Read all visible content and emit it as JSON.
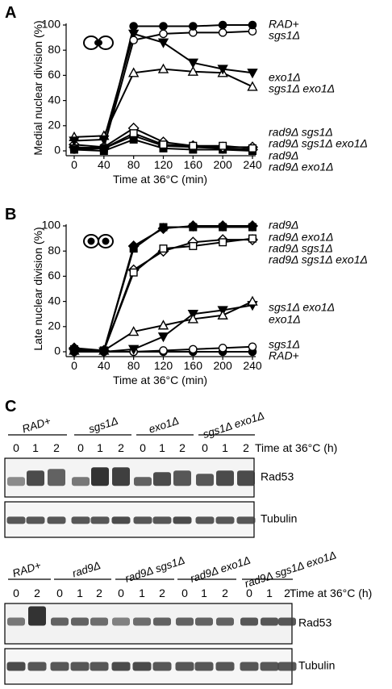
{
  "panels": {
    "a": {
      "letter": "A"
    },
    "b": {
      "letter": "B"
    },
    "c": {
      "letter": "C"
    }
  },
  "chart_data": [
    {
      "type": "line",
      "panel": "A",
      "xlabel": "Time at 36°C (min)",
      "ylabel": "Medial nuclear division (%)",
      "x": [
        0,
        40,
        80,
        120,
        160,
        200,
        240
      ],
      "xticks": [
        "0",
        "40",
        "80",
        "120",
        "160",
        "200",
        "240"
      ],
      "yticks": [
        "0",
        "20",
        "40",
        "60",
        "80",
        "100"
      ],
      "xlim": [
        0,
        240
      ],
      "ylim": [
        0,
        100
      ],
      "series": [
        {
          "name": "RAD+",
          "marker": "circle-filled",
          "values": [
            1,
            2,
            99,
            99,
            99,
            100,
            100
          ]
        },
        {
          "name": "sgs1Δ",
          "marker": "circle-open",
          "values": [
            2,
            3,
            88,
            93,
            94,
            94,
            95
          ]
        },
        {
          "name": "exo1Δ",
          "marker": "triangle-down-filled",
          "values": [
            8,
            9,
            93,
            86,
            70,
            65,
            62
          ]
        },
        {
          "name": "sgs1Δ exo1Δ",
          "marker": "triangle-up-open",
          "values": [
            11,
            12,
            62,
            65,
            63,
            62,
            51
          ]
        },
        {
          "name": "rad9Δ sgs1Δ",
          "marker": "square-open",
          "values": [
            2,
            2,
            14,
            5,
            4,
            4,
            2
          ]
        },
        {
          "name": "rad9Δ sgs1Δ exo1Δ",
          "marker": "diamond-open",
          "values": [
            5,
            3,
            18,
            7,
            4,
            3,
            3
          ]
        },
        {
          "name": "rad9Δ",
          "marker": "diamond-filled",
          "values": [
            3,
            2,
            12,
            4,
            3,
            2,
            1
          ]
        },
        {
          "name": "rad9Δ exo1Δ",
          "marker": "square-filled",
          "values": [
            1,
            0,
            9,
            2,
            1,
            1,
            0
          ]
        }
      ]
    },
    {
      "type": "line",
      "panel": "B",
      "xlabel": "Time at 36°C (min)",
      "ylabel": "Late nuclear division (%)",
      "x": [
        0,
        40,
        80,
        120,
        160,
        200,
        240
      ],
      "xticks": [
        "0",
        "40",
        "80",
        "120",
        "160",
        "200",
        "240"
      ],
      "yticks": [
        "0",
        "20",
        "40",
        "60",
        "80",
        "100"
      ],
      "xlim": [
        0,
        240
      ],
      "ylim": [
        0,
        100
      ],
      "series": [
        {
          "name": "rad9Δ",
          "marker": "diamond-filled",
          "values": [
            2,
            1,
            84,
            98,
            100,
            100,
            100
          ]
        },
        {
          "name": "rad9Δ exo1Δ",
          "marker": "square-filled",
          "values": [
            1,
            1,
            82,
            99,
            99,
            99,
            99
          ]
        },
        {
          "name": "rad9Δ sgs1Δ",
          "marker": "square-open",
          "values": [
            2,
            1,
            63,
            82,
            84,
            87,
            90
          ]
        },
        {
          "name": "rad9Δ sgs1Δ exo1Δ",
          "marker": "diamond-open",
          "values": [
            3,
            1,
            65,
            80,
            87,
            89,
            89
          ]
        },
        {
          "name": "sgs1Δ exo1Δ",
          "marker": "triangle-up-open",
          "values": [
            1,
            1,
            16,
            21,
            26,
            29,
            40
          ]
        },
        {
          "name": "exo1Δ",
          "marker": "triangle-down-filled",
          "values": [
            0,
            0,
            2,
            12,
            30,
            33,
            37
          ]
        },
        {
          "name": "sgs1Δ",
          "marker": "circle-open",
          "values": [
            0,
            0,
            0,
            1,
            2,
            3,
            4
          ]
        },
        {
          "name": "RAD+",
          "marker": "circle-filled",
          "values": [
            0,
            0,
            0,
            0,
            0,
            0,
            0
          ]
        }
      ]
    }
  ],
  "blot1": {
    "groups": [
      {
        "name": "RAD+",
        "lanes": [
          "0",
          "1",
          "2"
        ]
      },
      {
        "name": "sgs1Δ",
        "lanes": [
          "0",
          "1",
          "2"
        ]
      },
      {
        "name": "exo1Δ",
        "lanes": [
          "0",
          "1",
          "2"
        ]
      },
      {
        "name": "sgs1Δ exo1Δ",
        "lanes": [
          "0",
          "1",
          "2"
        ]
      }
    ],
    "time_label": "Time at 36°C (h)",
    "rows": [
      {
        "label": "Rad53",
        "intensity": [
          0.6,
          0.9,
          0.8,
          0.7,
          1.0,
          0.95,
          0.8,
          0.9,
          0.85,
          0.85,
          0.9,
          0.9
        ]
      },
      {
        "label": "Tubulin",
        "intensity": [
          0.85,
          0.85,
          0.85,
          0.85,
          0.85,
          0.9,
          0.85,
          0.85,
          0.9,
          0.85,
          0.85,
          0.85
        ]
      }
    ]
  },
  "blot2": {
    "groups": [
      {
        "name": "RAD+",
        "lanes": [
          "0",
          "2"
        ]
      },
      {
        "name": "rad9Δ",
        "lanes": [
          "0",
          "1",
          "2"
        ]
      },
      {
        "name": "rad9Δ sgs1Δ",
        "lanes": [
          "0",
          "1",
          "2"
        ]
      },
      {
        "name": "rad9Δ exo1Δ",
        "lanes": [
          "0",
          "1",
          "2"
        ]
      },
      {
        "name": "rad9Δ sgs1Δ exo1Δ",
        "lanes": [
          "0",
          "1",
          "2"
        ]
      }
    ],
    "time_label": "Time at 36°C (h)",
    "rows": [
      {
        "label": "Rad53",
        "intensity": [
          0.7,
          1.0,
          0.8,
          0.8,
          0.75,
          0.65,
          0.75,
          0.8,
          0.8,
          0.8,
          0.8,
          0.85,
          0.85,
          0.85
        ]
      },
      {
        "label": "Tubulin",
        "intensity": [
          0.9,
          0.85,
          0.85,
          0.85,
          0.85,
          0.9,
          0.9,
          0.85,
          0.85,
          0.85,
          0.85,
          0.85,
          0.85,
          0.85
        ]
      }
    ]
  }
}
